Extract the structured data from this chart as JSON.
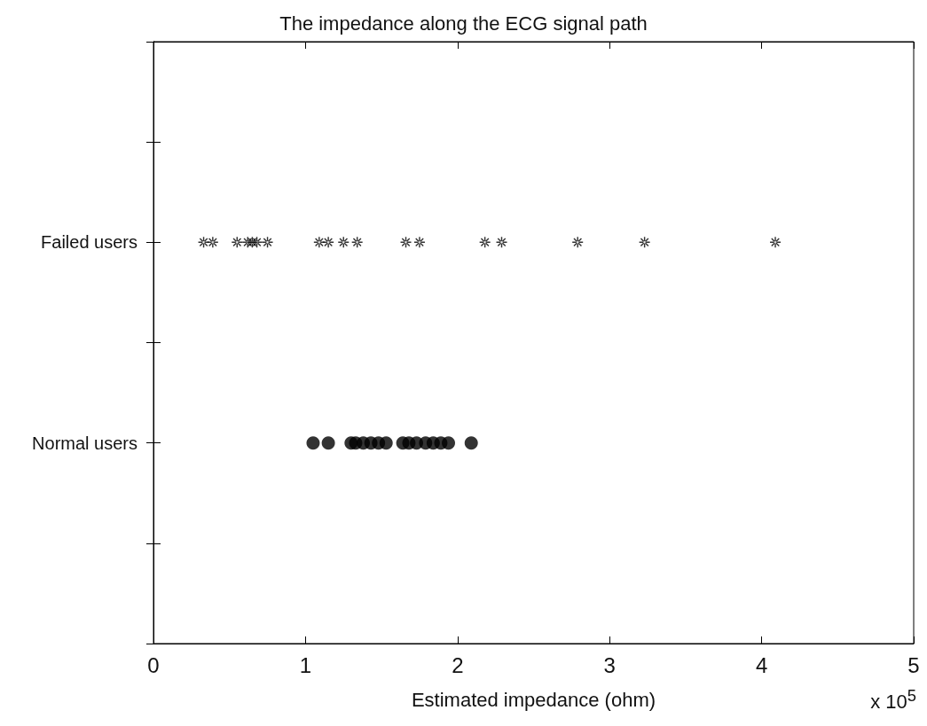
{
  "chart_data": {
    "type": "scatter",
    "title": "The impedance along the ECG signal path",
    "xlabel": "Estimated impedance (ohm)",
    "annotations": [
      "x 10$^{5}$"
    ],
    "orientation": "horizontal",
    "xlim": [
      0,
      5
    ],
    "xticks": [
      0,
      1,
      2,
      3,
      4,
      5
    ],
    "categories": [
      null,
      null,
      "Failed users",
      null,
      "Normal users",
      null,
      null
    ],
    "grid": false,
    "series": [
      {
        "color": "#000000",
        "marker": "star",
        "x": [
          "Failed users",
          "Failed users",
          "Failed users",
          "Failed users",
          "Failed users",
          "Failed users",
          "Failed users",
          "Failed users",
          "Failed users",
          "Failed users",
          "Failed users",
          "Failed users",
          "Failed users",
          "Failed users",
          "Failed users",
          "Failed users",
          "Failed users",
          "Failed users"
        ],
        "values": [
          0.33,
          0.39,
          0.55,
          0.62,
          0.65,
          0.68,
          0.75,
          1.09,
          1.15,
          1.25,
          1.34,
          1.66,
          1.75,
          2.18,
          2.29,
          2.79,
          3.23,
          4.09
        ]
      },
      {
        "color": "#000000",
        "marker": "circle",
        "x": [
          "Normal users",
          "Normal users",
          "Normal users",
          "Normal users",
          "Normal users",
          "Normal users",
          "Normal users",
          "Normal users",
          "Normal users",
          "Normal users",
          "Normal users",
          "Normal users",
          "Normal users",
          "Normal users",
          "Normal users",
          "Normal users"
        ],
        "values": [
          1.05,
          1.15,
          1.3,
          1.33,
          1.38,
          1.43,
          1.48,
          1.53,
          1.64,
          1.68,
          1.73,
          1.79,
          1.84,
          1.89,
          1.94,
          2.09
        ]
      }
    ]
  }
}
